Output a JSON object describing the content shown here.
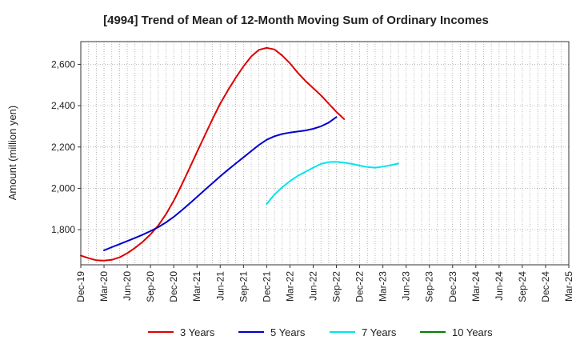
{
  "chart_data": {
    "type": "line",
    "title": "[4994]  Trend of Mean of 12-Month Moving Sum of Ordinary Incomes",
    "xlabel": "",
    "ylabel": "Amount (million yen)",
    "x_ticks": [
      "Dec-19",
      "Mar-20",
      "Jun-20",
      "Sep-20",
      "Dec-20",
      "Mar-21",
      "Jun-21",
      "Sep-21",
      "Dec-21",
      "Mar-22",
      "Jun-22",
      "Sep-22",
      "Dec-22",
      "Mar-23",
      "Jun-23",
      "Sep-23",
      "Dec-23",
      "Mar-24",
      "Jun-24",
      "Sep-24",
      "Dec-24",
      "Mar-25"
    ],
    "y_ticks": [
      1800,
      2000,
      2200,
      2400,
      2600
    ],
    "y_tick_labels": [
      "1,800",
      "2,000",
      "2,200",
      "2,400",
      "2,600"
    ],
    "ylim": [
      1630,
      2710
    ],
    "grid": true,
    "legend_position": "bottom",
    "series": [
      {
        "name": "3 Years",
        "color": "#dd0000",
        "start_index": 0,
        "values": [
          1675,
          1662,
          1652,
          1650,
          1654,
          1666,
          1686,
          1712,
          1742,
          1777,
          1820,
          1875,
          1940,
          2015,
          2095,
          2175,
          2255,
          2335,
          2410,
          2475,
          2535,
          2590,
          2638,
          2670,
          2680,
          2672,
          2643,
          2605,
          2560,
          2520,
          2485,
          2450,
          2410,
          2370,
          2335
        ]
      },
      {
        "name": "5 Years",
        "color": "#0000cc",
        "start_index": 3,
        "values": [
          1700,
          1715,
          1730,
          1745,
          1760,
          1776,
          1793,
          1812,
          1835,
          1862,
          1893,
          1925,
          1958,
          1992,
          2025,
          2058,
          2090,
          2120,
          2150,
          2180,
          2210,
          2235,
          2252,
          2263,
          2270,
          2275,
          2280,
          2288,
          2300,
          2318,
          2345
        ]
      },
      {
        "name": "7 Years",
        "color": "#00e5ee",
        "start_index": 24,
        "values": [
          1925,
          1970,
          2005,
          2035,
          2060,
          2080,
          2100,
          2118,
          2127,
          2128,
          2124,
          2118,
          2110,
          2103,
          2100,
          2105,
          2112,
          2120
        ]
      },
      {
        "name": "10 Years",
        "color": "#008000",
        "start_index": 0,
        "values": []
      }
    ]
  }
}
